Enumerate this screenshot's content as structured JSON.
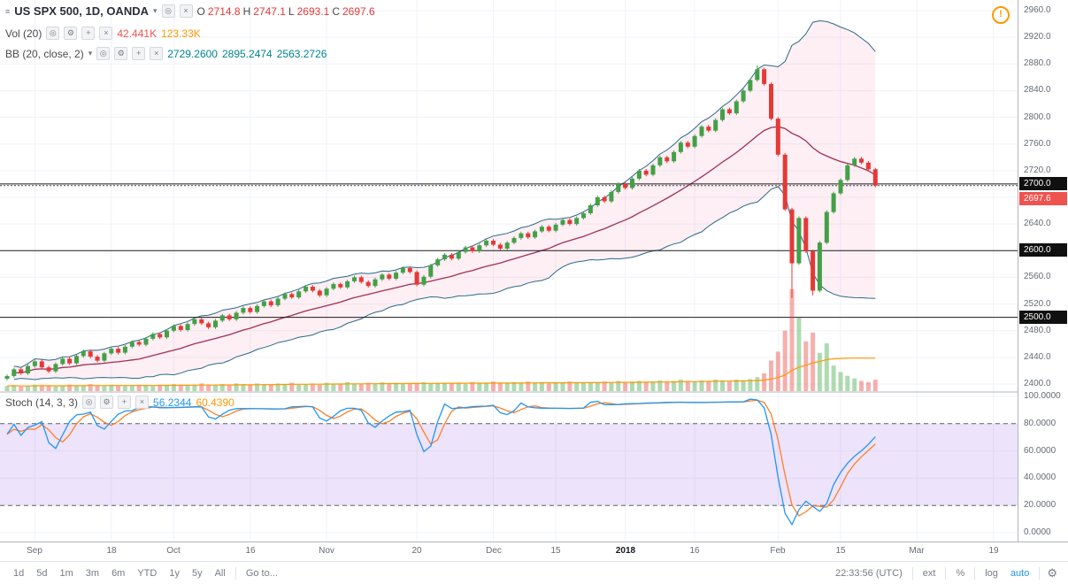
{
  "header": {
    "menu_icon": "≡",
    "title": "US SPX 500, 1D, OANDA",
    "caret": "▾",
    "icons": {
      "eye": "◎",
      "gear": "⚙",
      "plus": "+",
      "close": "×"
    },
    "ohlc": {
      "o_label": "O",
      "o_value": "2714.8",
      "h_label": "H",
      "h_value": "2747.1",
      "l_label": "L",
      "l_value": "2693.1",
      "c_label": "C",
      "c_value": "2697.6"
    },
    "volume_row": {
      "label": "Vol (20)",
      "value1": "42.441K",
      "value2": "123.33K"
    },
    "bb_row": {
      "label": "BB (20, close, 2)",
      "value1": "2729.2600",
      "value2": "2895.2474",
      "value3": "2563.2726"
    }
  },
  "stoch_row": {
    "label": "Stoch (14, 3, 3)",
    "k_value": "56.2344",
    "d_value": "60.4390"
  },
  "alert_icon": "!",
  "toolbar": {
    "ranges": [
      "1d",
      "5d",
      "1m",
      "3m",
      "6m",
      "YTD",
      "1y",
      "5y",
      "All"
    ],
    "goto_label": "Go to...",
    "clock": "22:33:56 (UTC)",
    "ext_label": "ext",
    "percent_label": "%",
    "log_label": "log",
    "auto_label": "auto",
    "settings_icon": "⚙"
  },
  "colors": {
    "candle_up": "#43a047",
    "candle_down": "#e53935",
    "bb_band_line": "#2a6a8a",
    "bb_basis_line": "#a03050",
    "bb_fill": "rgba(233,30,99,0.07)",
    "vol_up": "rgba(76,175,80,0.45)",
    "vol_down": "rgba(229,57,53,0.40)",
    "vol_ma": "#ff9800",
    "stoch_k": "#2196f3",
    "stoch_d": "#ff7f27",
    "stoch_band_fill": "rgba(155,100,230,0.18)",
    "stoch_band_line": "#606060",
    "grid": "#f0f3fa",
    "hline_black": "#1a1a1a",
    "axis_label_black_bg": "#101010",
    "axis_label_red_bg": "#ef5350",
    "accent_blue": "#2196f3"
  },
  "chart_data": {
    "type": "candlestick",
    "title": "US SPX 500, 1D, OANDA",
    "panes": [
      "price + bollinger(20,2) + volume(20)",
      "stochastic(14,3,3)"
    ],
    "price_axis": {
      "min": 2400,
      "max": 2960,
      "tick_step": 40,
      "plain_ticks": [
        2960,
        2920,
        2880,
        2840,
        2800,
        2760,
        2720,
        2640,
        2560,
        2520,
        2480,
        2440,
        2400
      ],
      "black_labels": [
        2700,
        2600,
        2500
      ],
      "current_price": 2697.6
    },
    "stoch_axis": {
      "ticks": [
        100,
        80,
        60,
        40,
        20,
        0
      ],
      "band": [
        20,
        80
      ]
    },
    "time_ticks": [
      {
        "label": "Sep",
        "i": 4
      },
      {
        "label": "18",
        "i": 15
      },
      {
        "label": "Oct",
        "i": 24
      },
      {
        "label": "16",
        "i": 35
      },
      {
        "label": "Nov",
        "i": 46
      },
      {
        "label": "20",
        "i": 59
      },
      {
        "label": "Dec",
        "i": 70
      },
      {
        "label": "15",
        "i": 79
      },
      {
        "label": "2018",
        "i": 89,
        "year": true
      },
      {
        "label": "16",
        "i": 99
      },
      {
        "label": "Feb",
        "i": 111
      },
      {
        "label": "15",
        "i": 120
      },
      {
        "label": "Mar",
        "i": 131
      },
      {
        "label": "19",
        "i": 142
      }
    ],
    "first_open": 2408,
    "closes": [
      2412,
      2422,
      2416,
      2427,
      2434,
      2425,
      2419,
      2430,
      2438,
      2431,
      2442,
      2449,
      2441,
      2435,
      2446,
      2453,
      2447,
      2456,
      2463,
      2459,
      2468,
      2475,
      2470,
      2480,
      2487,
      2481,
      2490,
      2497,
      2491,
      2485,
      2495,
      2503,
      2497,
      2507,
      2514,
      2508,
      2517,
      2524,
      2518,
      2528,
      2535,
      2530,
      2539,
      2546,
      2540,
      2533,
      2543,
      2550,
      2545,
      2554,
      2560,
      2553,
      2547,
      2557,
      2564,
      2558,
      2567,
      2574,
      2568,
      2549,
      2561,
      2578,
      2587,
      2594,
      2588,
      2598,
      2605,
      2599,
      2608,
      2615,
      2609,
      2603,
      2612,
      2619,
      2626,
      2620,
      2629,
      2636,
      2630,
      2639,
      2646,
      2640,
      2649,
      2656,
      2668,
      2680,
      2674,
      2688,
      2700,
      2694,
      2708,
      2720,
      2714,
      2728,
      2740,
      2734,
      2748,
      2762,
      2756,
      2772,
      2786,
      2780,
      2796,
      2812,
      2806,
      2824,
      2840,
      2856,
      2872,
      2850,
      2798,
      2744,
      2662,
      2581,
      2649,
      2599,
      2540,
      2612,
      2658,
      2686,
      2706,
      2728,
      2738,
      2732,
      2722,
      2697.6
    ],
    "volumes": [
      8,
      9,
      7,
      8,
      10,
      9,
      8,
      7,
      9,
      10,
      8,
      9,
      11,
      9,
      8,
      10,
      9,
      8,
      9,
      10,
      9,
      8,
      10,
      9,
      11,
      10,
      9,
      10,
      12,
      10,
      9,
      11,
      10,
      12,
      11,
      10,
      12,
      11,
      10,
      12,
      11,
      13,
      10,
      11,
      12,
      10,
      13,
      11,
      12,
      14,
      12,
      11,
      13,
      12,
      14,
      12,
      13,
      11,
      12,
      13,
      14,
      12,
      13,
      12,
      12,
      13,
      11,
      14,
      12,
      13,
      15,
      13,
      12,
      14,
      13,
      15,
      13,
      14,
      12,
      13,
      14,
      15,
      13,
      14,
      13,
      14,
      15,
      13,
      16,
      14,
      15,
      16,
      14,
      15,
      17,
      15,
      16,
      18,
      16,
      15,
      17,
      16,
      18,
      17,
      16,
      18,
      17,
      19,
      22,
      28,
      48,
      62,
      95,
      160,
      115,
      78,
      92,
      60,
      75,
      40,
      30,
      24,
      20,
      16,
      14,
      18
    ],
    "wick_lows": {
      "113": 2529,
      "116": 2533
    },
    "wick_highs": {
      "108": 2878
    },
    "indicators": {
      "bollinger": {
        "length": 20,
        "mult": 2
      },
      "vol_ma_length": 20,
      "stoch": {
        "k": 14,
        "smooth": 3,
        "d": 3
      }
    }
  }
}
